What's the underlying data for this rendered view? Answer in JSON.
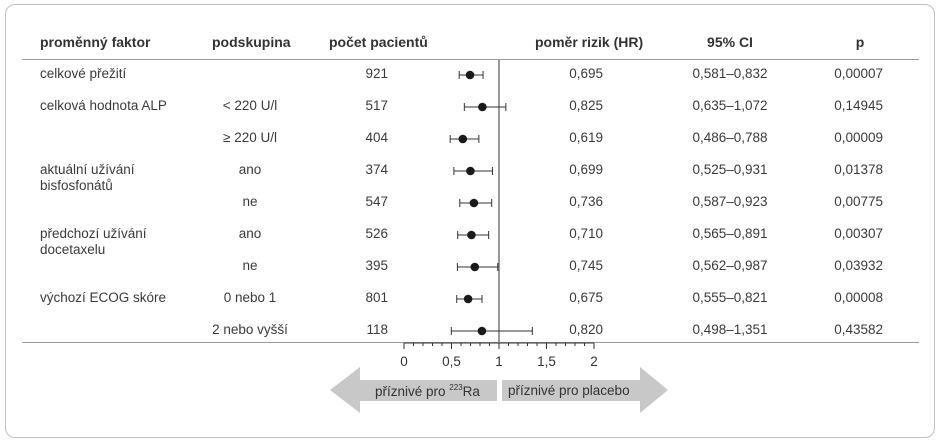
{
  "headers": {
    "factor": "proměnný faktor",
    "subgroup": "podskupina",
    "patients": "počet pacientů",
    "hr": "poměr rizik (HR)",
    "ci": "95% CI",
    "p": "p"
  },
  "rows": [
    {
      "factor": "celkové přežití",
      "subgroup": "",
      "n": "921",
      "hr": "0,695",
      "ci": "0,581–0,832",
      "p": "0,00007"
    },
    {
      "factor": "celková hodnota ALP",
      "subgroup": "< 220 U/l",
      "n": "517",
      "hr": "0,825",
      "ci": "0,635–1,072",
      "p": "0,14945"
    },
    {
      "factor": "",
      "subgroup": "≥ 220 U/l",
      "n": "404",
      "hr": "0,619",
      "ci": "0,486–0,788",
      "p": "0,00009"
    },
    {
      "factor": "aktuální užívání\nbisfosfonátů",
      "subgroup": "ano",
      "n": "374",
      "hr": "0,699",
      "ci": "0,525–0,931",
      "p": "0,01378"
    },
    {
      "factor": "",
      "subgroup": "ne",
      "n": "547",
      "hr": "0,736",
      "ci": "0,587–0,923",
      "p": "0,00775"
    },
    {
      "factor": "předchozí užívání\ndocetaxelu",
      "subgroup": "ano",
      "n": "526",
      "hr": "0,710",
      "ci": "0,565–0,891",
      "p": "0,00307"
    },
    {
      "factor": "",
      "subgroup": "ne",
      "n": "395",
      "hr": "0,745",
      "ci": "0,562–0,987",
      "p": "0,03932"
    },
    {
      "factor": "výchozí ECOG skóre",
      "subgroup": "0 nebo 1",
      "n": "801",
      "hr": "0,675",
      "ci": "0,555–0,821",
      "p": "0,00008"
    },
    {
      "factor": "",
      "subgroup": "2 nebo vyšší",
      "n": "118",
      "hr": "0,820",
      "ci": "0,498–1,351",
      "p": "0,43582"
    }
  ],
  "arrows": {
    "left_prefix": "příznivé pro ",
    "left_sup": "223",
    "left_suffix": "Ra",
    "right": "příznivé pro placebo",
    "color": "#c8c8c8"
  },
  "chart_data": {
    "type": "forest",
    "categories": [
      "celkové přežití",
      "celková hodnota ALP < 220 U/l",
      "celková hodnota ALP ≥ 220 U/l",
      "aktuální užívání bisfosfonátů ano",
      "aktuální užívání bisfosfonátů ne",
      "předchozí užívání docetaxelu ano",
      "předchozí užívání docetaxelu ne",
      "výchozí ECOG skóre 0 nebo 1",
      "výchozí ECOG skóre 2 nebo vyšší"
    ],
    "hr": [
      0.695,
      0.825,
      0.619,
      0.699,
      0.736,
      0.71,
      0.745,
      0.675,
      0.82
    ],
    "ci_low": [
      0.581,
      0.635,
      0.486,
      0.525,
      0.587,
      0.565,
      0.562,
      0.555,
      0.498
    ],
    "ci_high": [
      0.832,
      1.072,
      0.788,
      0.931,
      0.923,
      0.891,
      0.987,
      0.821,
      1.351
    ],
    "xlim": [
      0,
      2
    ],
    "xticks": [
      0,
      0.5,
      1,
      1.5,
      2
    ],
    "xtick_labels": [
      "0",
      "0,5",
      "1",
      "1,5",
      "2"
    ],
    "reference_line": 1
  }
}
